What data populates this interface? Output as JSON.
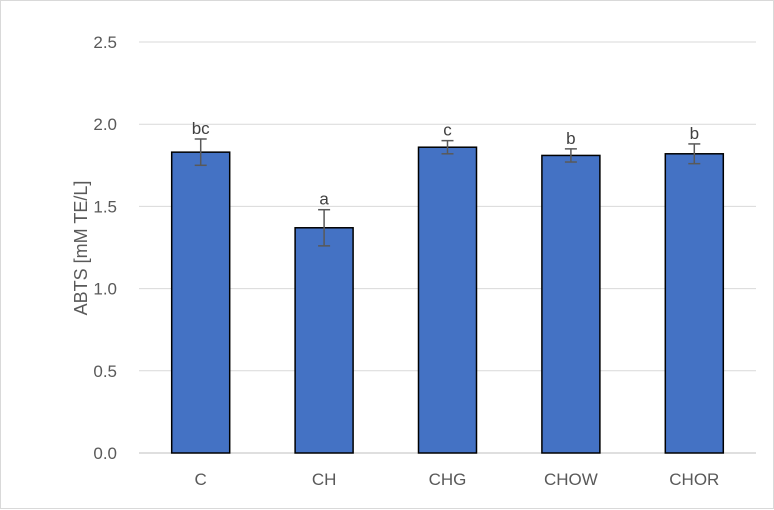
{
  "chart_data": {
    "type": "bar",
    "categories": [
      "C",
      "CH",
      "CHG",
      "CHOW",
      "CHOR"
    ],
    "series": [
      {
        "values": [
          1.83,
          1.37,
          1.86,
          1.81,
          1.82
        ],
        "error": [
          0.08,
          0.11,
          0.04,
          0.04,
          0.06
        ],
        "significance": [
          "bc",
          "a",
          "c",
          "b",
          "b"
        ],
        "color": "#4472C4"
      }
    ],
    "title": "",
    "xlabel": "",
    "ylabel": "ABTS [mM TE/L]",
    "ylim": [
      0,
      2.5
    ],
    "yticks": [
      "0.0",
      "0.5",
      "1.0",
      "1.5",
      "2.0",
      "2.5"
    ],
    "grid": true,
    "legend": "none"
  },
  "colors": {
    "bar": "#4472C4",
    "bar_edge": "#000000",
    "grid": "#d9d9d9",
    "error_bar": "#595959"
  }
}
